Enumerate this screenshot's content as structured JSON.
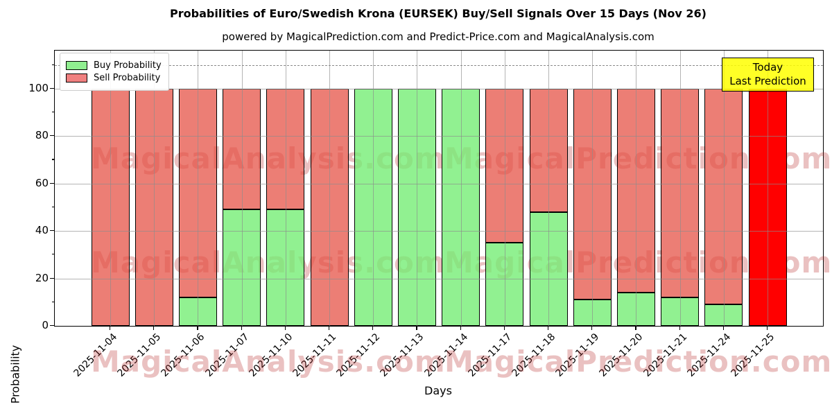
{
  "title": "Probabilities of Euro/Swedish Krona (EURSEK) Buy/Sell Signals Over 15 Days (Nov 26)",
  "subtitle": "powered by MagicalPrediction.com and Predict-Price.com and MagicalAnalysis.com",
  "legend": {
    "items": [
      {
        "label": "Buy Probability",
        "color": "#90ee90"
      },
      {
        "label": "Sell Probability",
        "color": "#f08080"
      }
    ]
  },
  "annotation": {
    "lines": [
      "Today",
      "Last Prediction"
    ],
    "bg": "#ffff00"
  },
  "watermarks": {
    "left": "MagicalAnalysis.com",
    "right": "MagicalPrediction.com"
  },
  "chart_data": {
    "type": "bar",
    "stacked": true,
    "title": "Probabilities of Euro/Swedish Krona (EURSEK) Buy/Sell Signals Over 15 Days (Nov 26)",
    "xlabel": "Days",
    "ylabel": "Probability",
    "ylim": [
      0,
      116
    ],
    "yticks": [
      0,
      20,
      40,
      60,
      80,
      100
    ],
    "minor_yticks": [
      10,
      30,
      50,
      70,
      90,
      110
    ],
    "dashed_line_y": 110,
    "grid": true,
    "legend_position": "upper left",
    "categories": [
      "2025-11-04",
      "2025-11-05",
      "2025-11-06",
      "2025-11-07",
      "2025-11-10",
      "2025-11-11",
      "2025-11-12",
      "2025-11-13",
      "2025-11-14",
      "2025-11-17",
      "2025-11-18",
      "2025-11-19",
      "2025-11-20",
      "2025-11-21",
      "2025-11-24",
      "2025-11-25"
    ],
    "series": [
      {
        "name": "Buy Probability",
        "color": "#90ee90",
        "values": [
          0,
          0,
          12,
          49,
          49,
          0,
          100,
          100,
          100,
          35,
          48,
          11,
          14,
          12,
          9,
          0
        ]
      },
      {
        "name": "Sell Probability",
        "color": "#f08080",
        "values": [
          100,
          100,
          88,
          51,
          51,
          100,
          0,
          0,
          0,
          65,
          52,
          89,
          86,
          88,
          91,
          0
        ]
      }
    ],
    "today_bar": {
      "category": "2025-11-25",
      "index": 15,
      "value": 100,
      "color": "#ff0000"
    }
  }
}
